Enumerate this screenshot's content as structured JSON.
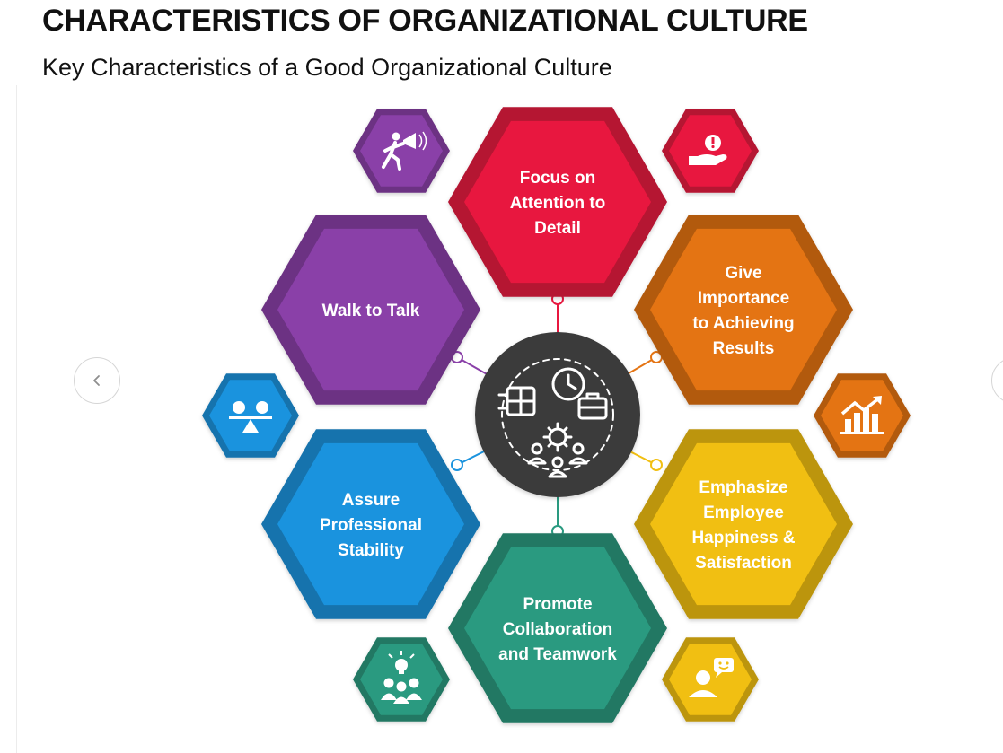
{
  "header": {
    "title": "CHARACTERISTICS OF ORGANIZATIONAL CULTURE",
    "subtitle": "Key Characteristics of a Good Organizational Culture"
  },
  "carousel": {
    "prev_icon": "chevron-left-icon",
    "next_icon": "chevron-right-icon"
  },
  "center": {
    "icon": "organizational-culture-icon"
  },
  "characteristics": [
    {
      "id": "attention",
      "lines": [
        "Focus on",
        "Attention to",
        "Detail"
      ],
      "color": "#e8173f",
      "icon": "hand-alert-icon"
    },
    {
      "id": "results",
      "lines": [
        "Give",
        "Importance",
        "to Achieving",
        "Results"
      ],
      "color": "#e47413",
      "icon": "bar-chart-growth-icon"
    },
    {
      "id": "happiness",
      "lines": [
        "Emphasize",
        "Employee",
        "Happiness &",
        "Satisfaction"
      ],
      "color": "#f1bf12",
      "icon": "user-chat-icon"
    },
    {
      "id": "collaboration",
      "lines": [
        "Promote",
        "Collaboration",
        "and Teamwork"
      ],
      "color": "#2a9a80",
      "icon": "team-idea-icon"
    },
    {
      "id": "stability",
      "lines": [
        "Assure",
        "Professional",
        "Stability"
      ],
      "color": "#1a93de",
      "icon": "balance-scale-icon"
    },
    {
      "id": "walk",
      "lines": [
        "Walk to Talk"
      ],
      "color": "#8a40a8",
      "icon": "walking-megaphone-icon"
    }
  ]
}
